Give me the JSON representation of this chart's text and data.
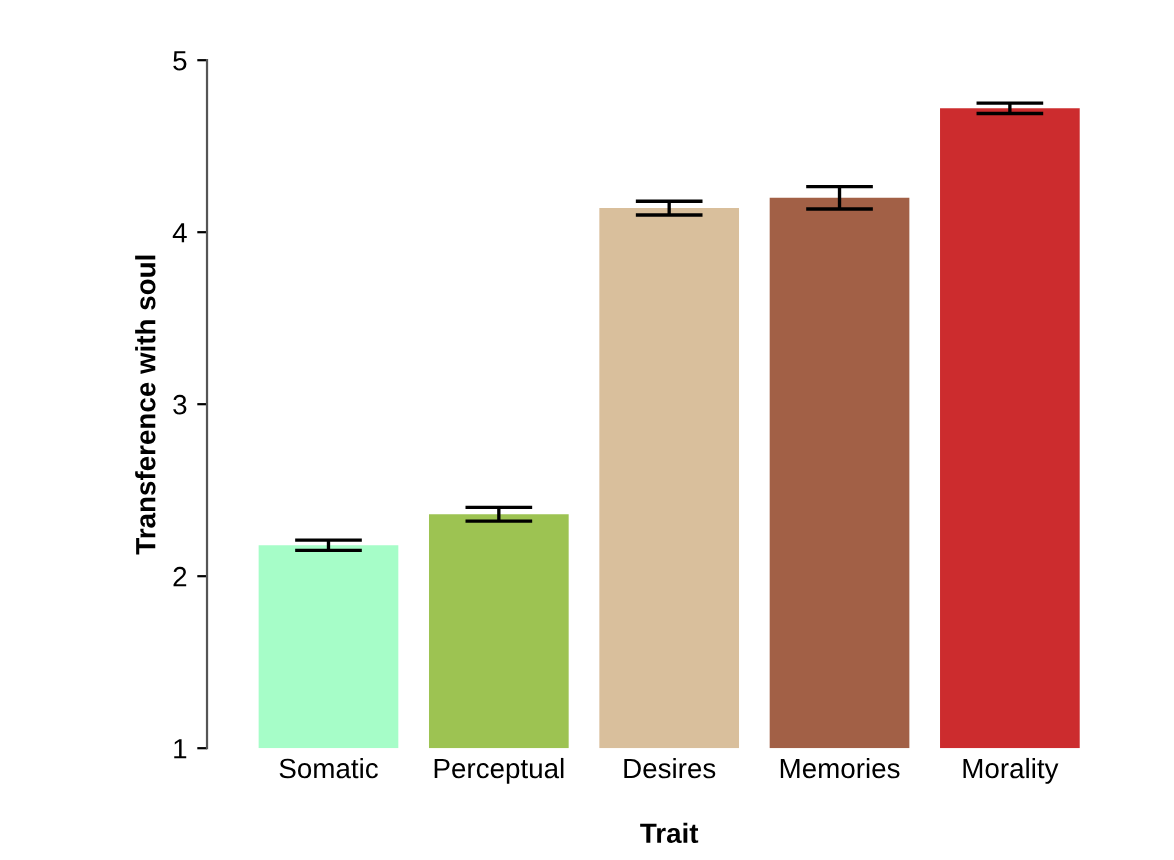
{
  "chart_data": {
    "type": "bar",
    "xlabel": "Trait",
    "ylabel": "Transference with soul",
    "categories": [
      "Somatic",
      "Perceptual",
      "Desires",
      "Memories",
      "Morality"
    ],
    "values": [
      2.18,
      2.36,
      4.14,
      4.2,
      4.72
    ],
    "errors": [
      0.03,
      0.04,
      0.04,
      0.065,
      0.03
    ],
    "colors": [
      "#a6fdc8",
      "#9dc352",
      "#d9bf9c",
      "#a26046",
      "#cc2c2e"
    ],
    "ylim": [
      1,
      5
    ],
    "yticks": [
      1,
      2,
      3,
      4,
      5
    ],
    "grid": false
  }
}
